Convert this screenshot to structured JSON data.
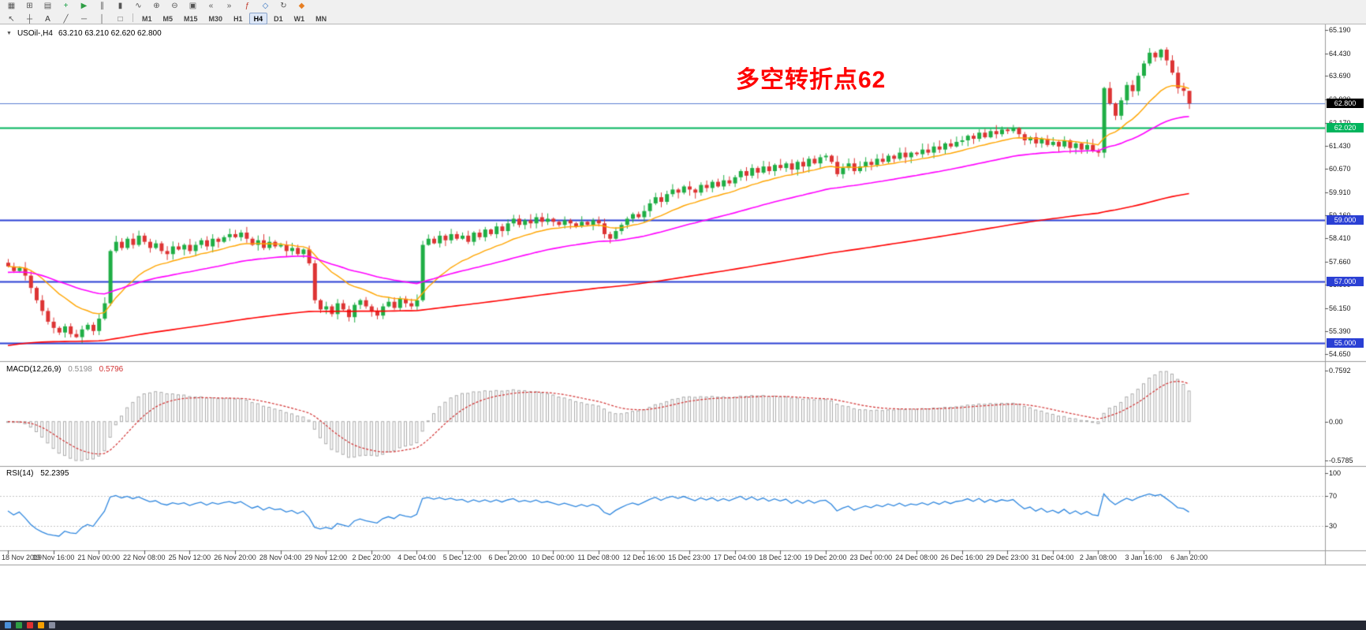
{
  "toolbar": {
    "row1_icons": [
      {
        "name": "menu-grid-icon",
        "glyph": "▦",
        "color": "#555555"
      },
      {
        "name": "new-chart-icon",
        "glyph": "⊞",
        "color": "#555555"
      },
      {
        "name": "profiles-icon",
        "glyph": "▤",
        "color": "#555555"
      },
      {
        "name": "new-order-icon",
        "glyph": "+",
        "color": "#0f9d3f"
      },
      {
        "name": "autotrading-icon",
        "glyph": "▶",
        "color": "#2f9e44"
      },
      {
        "name": "bar-chart-icon",
        "glyph": "∥",
        "color": "#555555"
      },
      {
        "name": "candlestick-chart-icon",
        "glyph": "▮",
        "color": "#555555"
      },
      {
        "name": "line-chart-icon",
        "glyph": "∿",
        "color": "#555555"
      },
      {
        "name": "zoom-in-icon",
        "glyph": "⊕",
        "color": "#555555"
      },
      {
        "name": "zoom-out-icon",
        "glyph": "⊖",
        "color": "#555555"
      },
      {
        "name": "templates-icon",
        "glyph": "▣",
        "color": "#555555"
      },
      {
        "name": "chart-shift-icon",
        "glyph": "«",
        "color": "#555555"
      },
      {
        "name": "auto-scroll-icon",
        "glyph": "»",
        "color": "#555555"
      },
      {
        "name": "indicators-icon",
        "glyph": "ƒ",
        "color": "#c0392b"
      },
      {
        "name": "objects-icon",
        "glyph": "◇",
        "color": "#2e6fc0"
      },
      {
        "name": "refresh-icon",
        "glyph": "↻",
        "color": "#555555"
      },
      {
        "name": "alerts-icon",
        "glyph": "◆",
        "color": "#e67e22"
      }
    ],
    "row2_icons": [
      {
        "name": "cursor-icon",
        "glyph": "↖",
        "color": "#555555"
      },
      {
        "name": "crosshair-icon",
        "glyph": "┼",
        "color": "#555555"
      },
      {
        "name": "text-tool-icon",
        "glyph": "A",
        "color": "#333333"
      },
      {
        "name": "trendline-icon",
        "glyph": "╱",
        "color": "#555555"
      },
      {
        "name": "hline-tool-icon",
        "glyph": "─",
        "color": "#555555"
      },
      {
        "name": "vline-tool-icon",
        "glyph": "│",
        "color": "#555555"
      },
      {
        "name": "shapes-icon",
        "glyph": "□",
        "color": "#555555"
      }
    ],
    "timeframes": [
      "M1",
      "M5",
      "M15",
      "M30",
      "H1",
      "H4",
      "D1",
      "W1",
      "MN"
    ],
    "active_timeframe": "H4"
  },
  "chart": {
    "collapse_icon": "▼",
    "title_symbol": "USOil-,H4",
    "title_ohlc": "63.210 63.210 62.620 62.800",
    "annotation": {
      "text": "多空转折点62",
      "color": "#ff0000"
    }
  },
  "macd_panel": {
    "label": "MACD(12,26,9)",
    "value_main": "0.5198",
    "value_signal": "0.5796",
    "axis": [
      "0.7592",
      "0.00",
      "-0.5785"
    ],
    "histogram_color": "#aaaaaa",
    "signal_color": "#d23333"
  },
  "rsi_panel": {
    "label": "RSI(14)",
    "value": "52.2395",
    "axis": [
      "100",
      "70",
      "30"
    ],
    "levels": [
      70,
      30
    ],
    "line_color": "#2E86DE"
  },
  "chart_data": {
    "type": "candlestick",
    "symbol": "USOil-",
    "timeframe": "H4",
    "title": "USOil-,H4",
    "last_ohlc": {
      "open": 63.21,
      "high": 63.21,
      "low": 62.62,
      "close": 62.8
    },
    "price_range": [
      54.65,
      65.19
    ],
    "y_ticks": [
      "65.190",
      "64.430",
      "63.690",
      "62.930",
      "62.170",
      "61.430",
      "60.670",
      "59.910",
      "59.160",
      "58.410",
      "57.660",
      "56.900",
      "56.150",
      "55.390",
      "54.650"
    ],
    "x_labels": [
      "18 Nov 2019",
      "19 Nov 16:00",
      "21 Nov 00:00",
      "22 Nov 08:00",
      "25 Nov 12:00",
      "26 Nov 20:00",
      "28 Nov 04:00",
      "29 Nov 12:00",
      "2 Dec 20:00",
      "4 Dec 04:00",
      "5 Dec 12:00",
      "6 Dec 20:00",
      "10 Dec 00:00",
      "11 Dec 08:00",
      "12 Dec 16:00",
      "15 Dec 23:00",
      "17 Dec 04:00",
      "18 Dec 12:00",
      "19 Dec 20:00",
      "23 Dec 00:00",
      "24 Dec 08:00",
      "26 Dec 16:00",
      "29 Dec 23:00",
      "31 Dec 04:00",
      "2 Jan 08:00",
      "3 Jan 16:00",
      "6 Jan 20:00"
    ],
    "colors": {
      "bull": "#1fae45",
      "bear": "#dd3434"
    },
    "horizontal_lines": [
      {
        "price": 62.8,
        "color": "#5b7fd0",
        "width": 1,
        "label": "62.800",
        "label_bg": "#000000",
        "name": "current-price-line"
      },
      {
        "price": 62.02,
        "color": "#00b45c",
        "width": 2,
        "label": "62.020",
        "label_bg": "#00b45c",
        "name": "green-level-line"
      },
      {
        "price": 59.0,
        "color": "#2a3fd4",
        "width": 2,
        "label": "59.000",
        "label_bg": "#2a3fd4",
        "name": "blue-level-line-59"
      },
      {
        "price": 57.0,
        "color": "#2a3fd4",
        "width": 2,
        "label": "57.000",
        "label_bg": "#2a3fd4",
        "name": "blue-level-line-57"
      },
      {
        "price": 55.0,
        "color": "#2a3fd4",
        "width": 2,
        "label": "55.000",
        "label_bg": "#2a3fd4",
        "name": "blue-level-line-55"
      }
    ],
    "moving_averages": [
      {
        "name": "fast-ma",
        "period": 16,
        "seed": 57.5,
        "color": "#FFA500",
        "width": 1.4
      },
      {
        "name": "mid-ma",
        "period": 48,
        "seed": 57.3,
        "color": "#FF00FF",
        "width": 1.6
      },
      {
        "name": "slow-ma",
        "period": 200,
        "seed": 54.9,
        "color": "#FF0000",
        "width": 1.6
      }
    ],
    "closes": [
      57.5,
      57.35,
      57.45,
      57.2,
      56.8,
      56.4,
      56.05,
      55.7,
      55.5,
      55.35,
      55.55,
      55.3,
      55.2,
      55.45,
      55.6,
      55.4,
      55.8,
      56.3,
      58.0,
      58.3,
      58.1,
      58.4,
      58.2,
      58.5,
      58.3,
      58.1,
      58.25,
      58.0,
      57.9,
      58.15,
      58.05,
      58.2,
      58.0,
      58.2,
      58.35,
      58.15,
      58.4,
      58.3,
      58.45,
      58.55,
      58.45,
      58.6,
      58.4,
      58.2,
      58.35,
      58.1,
      58.3,
      58.15,
      58.2,
      58.0,
      58.1,
      57.9,
      58.05,
      57.6,
      56.4,
      56.1,
      56.2,
      55.95,
      56.3,
      56.1,
      55.85,
      56.25,
      56.4,
      56.2,
      56.05,
      55.9,
      56.2,
      56.35,
      56.15,
      56.45,
      56.3,
      56.2,
      56.4,
      58.2,
      58.4,
      58.25,
      58.5,
      58.35,
      58.55,
      58.4,
      58.5,
      58.3,
      58.6,
      58.45,
      58.7,
      58.55,
      58.8,
      58.65,
      58.9,
      59.05,
      58.85,
      59.0,
      58.9,
      59.1,
      58.95,
      59.05,
      58.95,
      58.85,
      59.0,
      58.9,
      58.8,
      58.95,
      58.85,
      59.0,
      58.9,
      58.55,
      58.4,
      58.65,
      58.85,
      59.05,
      59.2,
      59.1,
      59.3,
      59.55,
      59.75,
      59.6,
      59.85,
      60.0,
      59.9,
      60.1,
      60.0,
      59.9,
      60.15,
      60.05,
      60.25,
      60.1,
      60.3,
      60.2,
      60.4,
      60.6,
      60.45,
      60.7,
      60.55,
      60.75,
      60.6,
      60.8,
      60.7,
      60.85,
      60.65,
      60.9,
      60.75,
      61.0,
      60.85,
      61.05,
      61.1,
      60.9,
      60.5,
      60.7,
      60.85,
      60.6,
      60.75,
      60.9,
      60.8,
      61.0,
      60.9,
      61.1,
      61.0,
      61.2,
      61.05,
      61.2,
      61.15,
      61.3,
      61.2,
      61.4,
      61.3,
      61.5,
      61.4,
      61.55,
      61.6,
      61.75,
      61.65,
      61.85,
      61.7,
      61.9,
      61.8,
      61.95,
      61.9,
      62.0,
      61.8,
      61.6,
      61.7,
      61.5,
      61.65,
      61.45,
      61.55,
      61.4,
      61.6,
      61.35,
      61.5,
      61.3,
      61.45,
      61.25,
      61.2,
      63.3,
      62.8,
      62.4,
      62.9,
      63.4,
      63.2,
      63.7,
      64.1,
      64.45,
      64.3,
      64.55,
      64.2,
      63.8,
      63.3,
      63.21,
      62.8
    ]
  },
  "taskbar": {
    "icons": [
      {
        "name": "taskbar-app-icon",
        "color": "#4a90d9"
      },
      {
        "name": "taskbar-app-icon",
        "color": "#2f9e44"
      },
      {
        "name": "taskbar-app-icon",
        "color": "#e03131"
      },
      {
        "name": "taskbar-app-icon",
        "color": "#f59f00"
      },
      {
        "name": "taskbar-app-icon",
        "color": "#888da0"
      }
    ]
  }
}
